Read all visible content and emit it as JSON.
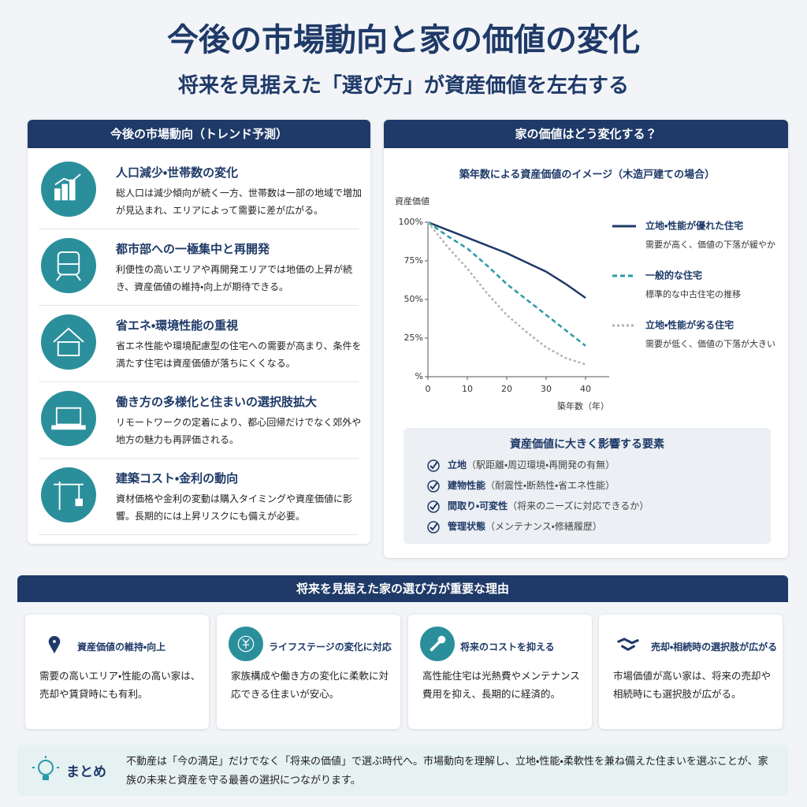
{
  "header": {
    "title": "今後の市場動向と家の価値の変化",
    "subtitle": "将来を見据えた「選び方」が資産価値を左右する"
  },
  "trends": {
    "heading": "今後の市場動向（トレンド予測）",
    "items": [
      {
        "title": "人口減少・世帯数の変化",
        "text": "総人口は減少傾向が続く一方、世帯数は一部の地域で増加が見込まれ、エリアによって需要に差が広がる。"
      },
      {
        "title": "都市部への一極集中と再開発",
        "text": "利便性の高いエリアや再開発エリアでは地価の上昇が続き、資産価値の維持・向上が期待できる。"
      },
      {
        "title": "省エネ・環境性能の重視",
        "text": "省エネ性能や環境配慮型の住宅への需要が高まり、条件を満たす住宅は資産価値が落ちにくくなる。"
      },
      {
        "title": "働き方の多様化と住まいの選択肢拡大",
        "text": "リモートワークの定着により、都心回帰だけでなく郊外や地方の魅力も再評価される。"
      },
      {
        "title": "建築コスト・金利の動向",
        "text": "資材価格や金利の変動は購入タイミングや資産価値に影響。長期的には上昇リスクにも備えが必要。"
      }
    ]
  },
  "value_panel": {
    "heading": "家の価値はどう変化する？"
  },
  "chart_data": {
    "type": "line",
    "title": "築年数による資産価値のイメージ（木造戸建ての場合）",
    "y_label": "資産価値",
    "x_label": "築年数（年）",
    "x": [
      0,
      5,
      10,
      15,
      20,
      25,
      30,
      35,
      40
    ],
    "xlim": [
      0,
      40
    ],
    "xticks": [
      0,
      10,
      20,
      30,
      40
    ],
    "ylim": [
      0,
      100
    ],
    "yticks": [
      {
        "value": 0,
        "label": "%"
      },
      {
        "value": 25,
        "label": "25%"
      },
      {
        "value": 50,
        "label": "50%"
      },
      {
        "value": 75,
        "label": "75%"
      },
      {
        "value": 100,
        "label": "100%"
      }
    ],
    "series": [
      {
        "name": "立地・性能が優れた住宅",
        "description": "需要が高く、価値の下落が緩やか",
        "color": "#1f3a68",
        "style": "solid",
        "values": [
          100,
          95,
          90,
          85,
          80,
          74,
          68,
          60,
          51
        ]
      },
      {
        "name": "一般的な住宅",
        "description": "標準的な中古住宅の推移",
        "color": "#2a9aa6",
        "style": "dashed",
        "values": [
          100,
          91,
          83,
          72,
          60,
          50,
          40,
          30,
          20
        ]
      },
      {
        "name": "立地・性能が劣る住宅",
        "description": "需要が低く、価値の下落が大きい",
        "color": "#b3b3b3",
        "style": "dotted",
        "values": [
          100,
          84,
          70,
          54,
          40,
          29,
          19,
          12,
          8
        ]
      }
    ]
  },
  "factors": {
    "heading": "資産価値に大きく影響する要素",
    "items": [
      {
        "label": "立地",
        "detail": "（駅距離・周辺環境・再開発の有無）"
      },
      {
        "label": "建物性能",
        "detail": "（耐震性・断熱性・省エネ性能）"
      },
      {
        "label": "間取り・可変性",
        "detail": "（将来のニーズに対応できるか）"
      },
      {
        "label": "管理状態",
        "detail": "（メンテナンス・修繕履歴）"
      }
    ]
  },
  "reasons": {
    "heading": "将来を見据えた家の選び方が重要な理由",
    "items": [
      {
        "title": "資産価値の維持・向上",
        "text": "需要の高いエリア・性能の高い家は、売却や賃貸時にも有利。"
      },
      {
        "title": "ライフステージの変化に対応",
        "text": "家族構成や働き方の変化に柔軟に対応できる住まいが安心。"
      },
      {
        "title": "将来のコストを抑える",
        "text": "高性能住宅は光熱費やメンテナンス費用を抑え、長期的に経済的。"
      },
      {
        "title": "売却・相続時の選択肢が広がる",
        "text": "市場価値が高い家は、将来の売却や相続時にも選択肢が広がる。"
      }
    ]
  },
  "summary": {
    "label": "まとめ",
    "text": "不動産は「今の満足」だけでなく「将来の価値」で選ぶ時代へ。市場動向を理解し、立地・性能・柔軟性を兼ね備えた住まいを選ぶことが、家族の未来と資産を守る最善の選択につながります。"
  }
}
